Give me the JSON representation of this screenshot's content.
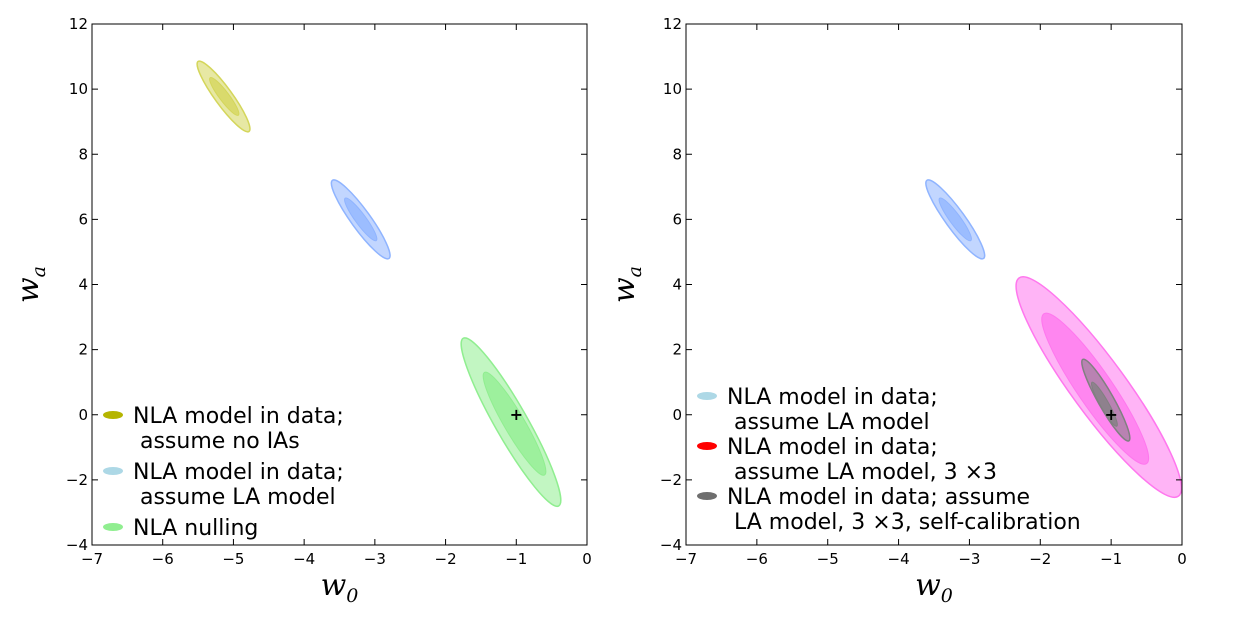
{
  "chart_data": [
    {
      "type": "contour",
      "xlabel": "w",
      "xlabel_sub": "0",
      "ylabel": "w",
      "ylabel_sub": "a",
      "xlim": [
        -7,
        0
      ],
      "ylim": [
        -4,
        12
      ],
      "xticks": [
        -7,
        -6,
        -5,
        -4,
        -3,
        -2,
        -1,
        0
      ],
      "yticks": [
        -4,
        -2,
        0,
        2,
        4,
        6,
        8,
        10,
        12
      ],
      "xtick_labels": [
        "−7",
        "−6",
        "−5",
        "−4",
        "−3",
        "−2",
        "−1",
        "0"
      ],
      "ytick_labels": [
        "−4",
        "−2",
        "0",
        "2",
        "4",
        "6",
        "8",
        "10",
        "12"
      ],
      "fiducial": {
        "w0": -1.0,
        "wa": 0.0,
        "marker": "+"
      },
      "legend_position": "lower-left",
      "series": [
        {
          "name_lines": [
            "NLA model in data;",
            " assume no IAs"
          ],
          "color": "#d4d65a",
          "legend_color": "#b5b500",
          "center": [
            -5.13,
            9.78
          ],
          "outer": {
            "w0_span": [
              -5.5,
              -4.78
            ],
            "wa_span": [
              8.7,
              10.85
            ]
          },
          "inner": {
            "w0_span": [
              -5.33,
              -4.93
            ],
            "wa_span": [
              9.2,
              10.35
            ]
          }
        },
        {
          "name_lines": [
            "NLA model in data;",
            " assume LA model"
          ],
          "color": "#8fb4ff",
          "legend_color": "#add8e6",
          "center": [
            -3.2,
            6.0
          ],
          "outer": {
            "w0_span": [
              -3.6,
              -2.8
            ],
            "wa_span": [
              4.8,
              7.2
            ]
          },
          "inner": {
            "w0_span": [
              -3.42,
              -2.98
            ],
            "wa_span": [
              5.35,
              6.65
            ]
          }
        },
        {
          "name_lines": [
            "NLA nulling"
          ],
          "color": "#90ee90",
          "legend_color": "#90ee90",
          "center": [
            -1.07,
            -0.23
          ],
          "outer": {
            "w0_span": [
              -1.75,
              -0.4
            ],
            "wa_span": [
              -2.8,
              2.35
            ]
          },
          "inner": {
            "w0_span": [
              -1.45,
              -0.6
            ],
            "wa_span": [
              -1.85,
              1.3
            ]
          }
        }
      ]
    },
    {
      "type": "contour",
      "xlabel": "w",
      "xlabel_sub": "0",
      "ylabel": "w",
      "ylabel_sub": "a",
      "xlim": [
        -7,
        0
      ],
      "ylim": [
        -4,
        12
      ],
      "xticks": [
        -7,
        -6,
        -5,
        -4,
        -3,
        -2,
        -1,
        0
      ],
      "yticks": [
        -4,
        -2,
        0,
        2,
        4,
        6,
        8,
        10,
        12
      ],
      "xtick_labels": [
        "−7",
        "−6",
        "−5",
        "−4",
        "−3",
        "−2",
        "−1",
        "0"
      ],
      "ytick_labels": [
        "−4",
        "−2",
        "0",
        "2",
        "4",
        "6",
        "8",
        "10",
        "12"
      ],
      "fiducial": {
        "w0": -1.0,
        "wa": 0.0,
        "marker": "+"
      },
      "legend_position": "lower-left",
      "series": [
        {
          "name_lines": [
            "NLA model in data;",
            " assume LA model"
          ],
          "color": "#8fb4ff",
          "legend_color": "#add8e6",
          "center": [
            -3.2,
            6.0
          ],
          "outer": {
            "w0_span": [
              -3.6,
              -2.8
            ],
            "wa_span": [
              4.8,
              7.2
            ]
          },
          "inner": {
            "w0_span": [
              -3.42,
              -2.98
            ],
            "wa_span": [
              5.35,
              6.65
            ]
          }
        },
        {
          "name_lines": [
            "NLA model in data;",
            " assume LA model, 3 ×3"
          ],
          "color": "#ff77ee",
          "legend_color": "#ff0000",
          "center": [
            -1.2,
            0.85
          ],
          "outer": {
            "w0_span": [
              -2.3,
              -0.05
            ],
            "wa_span": [
              -2.5,
              4.2
            ]
          },
          "inner": {
            "w0_span": [
              -1.95,
              -0.5
            ],
            "wa_span": [
              -1.5,
              3.1
            ]
          }
        },
        {
          "name_lines": [
            "NLA model in data; assume",
            " LA model, 3 ×3, self-calibration"
          ],
          "color": "#808080",
          "legend_color": "#6e6e6e",
          "center": [
            -1.1,
            0.15
          ],
          "outer": {
            "w0_span": [
              -1.4,
              -0.75
            ],
            "wa_span": [
              -0.8,
              1.7
            ]
          },
          "inner": {
            "w0_span": [
              -1.27,
              -0.92
            ],
            "wa_span": [
              -0.35,
              1.0
            ]
          }
        }
      ]
    }
  ]
}
